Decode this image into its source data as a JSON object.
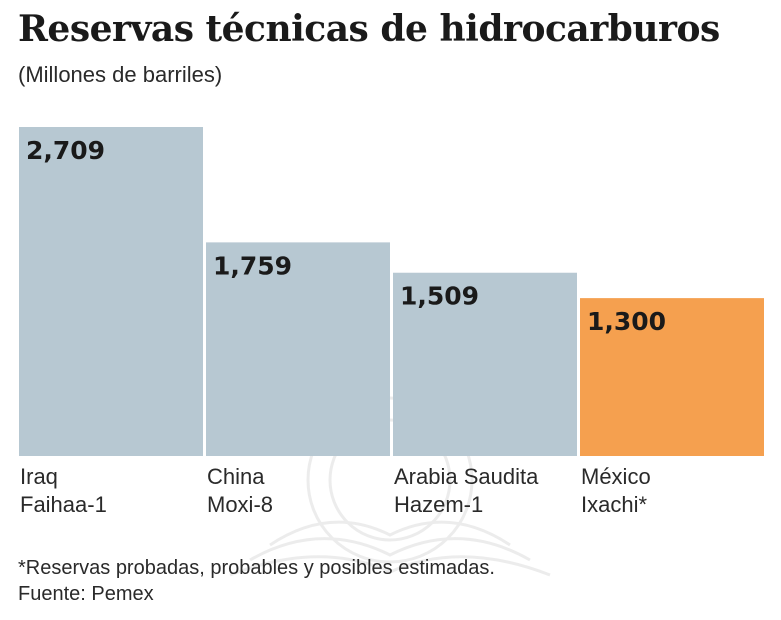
{
  "chart_data": {
    "type": "bar",
    "title": "Reservas técnicas de hidrocarburos",
    "subtitle": "(Millones de barriles)",
    "categories": [
      {
        "line1": "Iraq",
        "line2": "Faihaa-1"
      },
      {
        "line1": "China",
        "line2": "Moxi-8"
      },
      {
        "line1": "Arabia Saudita",
        "line2": "Hazem-1"
      },
      {
        "line1": "México",
        "line2": "Ixachi*"
      }
    ],
    "values": [
      2709,
      1759,
      1509,
      1300
    ],
    "value_labels": [
      "2,709",
      "1,759",
      "1,509",
      "1,300"
    ],
    "colors": [
      "#b7c8d2",
      "#b7c8d2",
      "#b7c8d2",
      "#f5a04f"
    ],
    "ylim": [
      0,
      2709
    ],
    "grid": false
  },
  "footnote": "*Reservas probadas, probables y posibles estimadas.",
  "source": "Fuente: Pemex"
}
